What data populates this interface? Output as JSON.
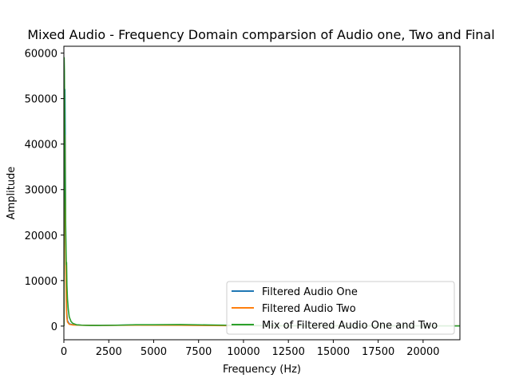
{
  "chart_data": {
    "type": "line",
    "title": "Mixed Audio - Frequency Domain comparsion of Audio one, Two and Final",
    "xlabel": "Frequency (Hz)",
    "ylabel": "Amplitude",
    "xlim": [
      0,
      22050
    ],
    "ylim": [
      -3000,
      61500
    ],
    "xticks": [
      0,
      2500,
      5000,
      7500,
      10000,
      12500,
      15000,
      17500,
      20000
    ],
    "xtick_labels": [
      "0",
      "2500",
      "5000",
      "7500",
      "10000",
      "12500",
      "15000",
      "17500",
      "20000"
    ],
    "yticks": [
      0,
      10000,
      20000,
      30000,
      40000,
      50000,
      60000
    ],
    "ytick_labels": [
      "0",
      "10000",
      "20000",
      "30000",
      "40000",
      "50000",
      "60000"
    ],
    "grid": false,
    "legend_position": "lower-right",
    "series": [
      {
        "name": "Filtered Audio One",
        "color": "#1f77b4",
        "x": [
          0,
          20,
          40,
          60,
          80,
          100,
          120,
          140,
          160,
          200,
          300,
          500,
          1000,
          2000,
          4000,
          6500,
          9000,
          12000,
          16000,
          20000,
          22050
        ],
        "values": [
          0,
          30000,
          45000,
          52000,
          40000,
          22000,
          12000,
          6000,
          3000,
          1200,
          500,
          300,
          200,
          150,
          250,
          200,
          120,
          80,
          60,
          50,
          40
        ]
      },
      {
        "name": "Filtered Audio Two",
        "color": "#ff7f0e",
        "x": [
          0,
          20,
          40,
          60,
          80,
          100,
          120,
          140,
          160,
          200,
          300,
          500,
          1000,
          2000,
          4000,
          6500,
          9000,
          12000,
          16000,
          20000,
          22050
        ],
        "values": [
          0,
          20000,
          35000,
          42000,
          30000,
          18000,
          9000,
          4000,
          2000,
          900,
          400,
          250,
          180,
          130,
          200,
          180,
          100,
          70,
          50,
          40,
          30
        ]
      },
      {
        "name": "Mix of Filtered Audio One and Two",
        "color": "#2ca02c",
        "x": [
          0,
          15,
          30,
          45,
          60,
          75,
          90,
          105,
          120,
          135,
          150,
          170,
          200,
          250,
          300,
          400,
          500,
          700,
          1000,
          1500,
          2000,
          3000,
          4000,
          5000,
          6500,
          8000,
          9000,
          10000,
          12000,
          14000,
          16000,
          18000,
          20000,
          22050
        ],
        "values": [
          0,
          59000,
          56000,
          47000,
          38000,
          30000,
          25000,
          20000,
          17000,
          13500,
          14000,
          9000,
          6000,
          3500,
          2000,
          1000,
          600,
          300,
          200,
          150,
          150,
          200,
          300,
          300,
          350,
          250,
          200,
          150,
          100,
          80,
          60,
          50,
          40,
          30
        ]
      }
    ]
  }
}
